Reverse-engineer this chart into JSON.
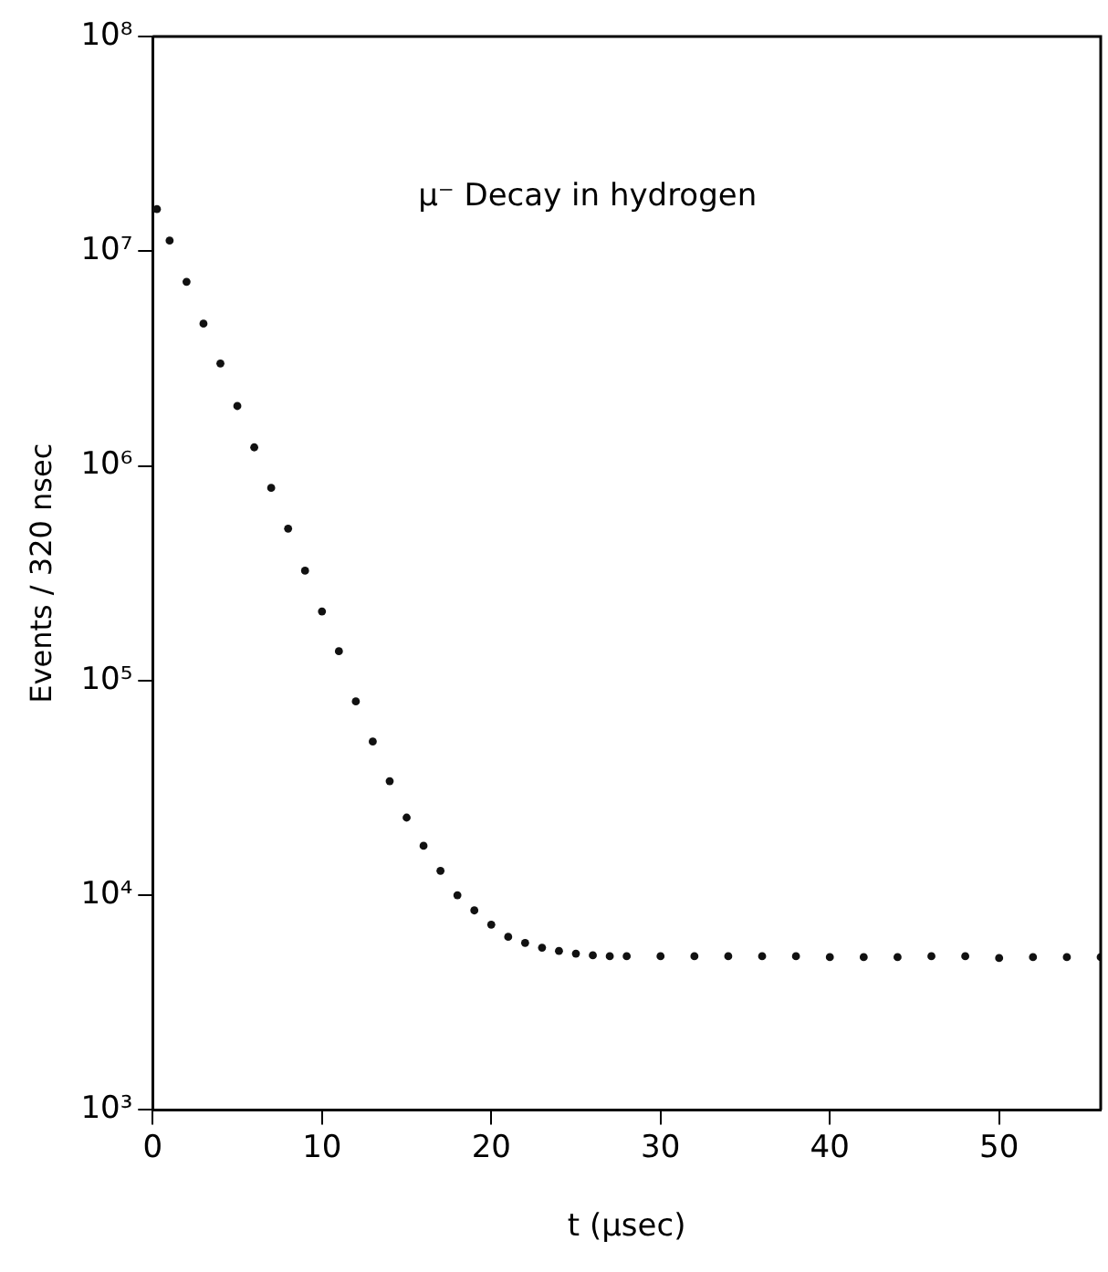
{
  "chart_data": {
    "type": "scatter",
    "xlabel": "t (μsec)",
    "ylabel": "Events / 320 nsec",
    "annotations": [
      "μ⁻ Decay in hydrogen"
    ],
    "x": [
      0.25,
      1,
      2,
      3,
      4,
      5,
      6,
      7,
      8,
      9,
      10,
      11,
      12,
      13,
      14,
      15,
      16,
      17,
      18,
      19,
      20,
      21,
      22,
      23,
      24,
      25,
      26,
      27,
      28,
      30,
      32,
      34,
      36,
      38,
      40,
      42,
      44,
      46,
      48,
      50,
      52,
      54,
      56
    ],
    "series": [
      {
        "color": "#111111",
        "values": [
          15700000,
          11200000,
          7200000,
          4600000,
          3000000,
          1900000,
          1220000,
          790000,
          510000,
          325000,
          210000,
          137000,
          80000,
          52000,
          34000,
          23000,
          17000,
          13000,
          10000,
          8500,
          7300,
          6400,
          6000,
          5700,
          5500,
          5350,
          5250,
          5200,
          5200,
          5200,
          5200,
          5200,
          5200,
          5200,
          5150,
          5150,
          5150,
          5200,
          5200,
          5100,
          5150,
          5150,
          5150
        ]
      }
    ],
    "xlim": [
      0,
      56
    ],
    "xticks": [
      0,
      10,
      20,
      30,
      40,
      50
    ],
    "ylim": [
      1000,
      100000000
    ],
    "log": true,
    "yticks": [
      {
        "value": 1000,
        "label": "10³"
      },
      {
        "value": 10000,
        "label": "10⁴"
      },
      {
        "value": 100000,
        "label": "10⁵"
      },
      {
        "value": 1000000,
        "label": "10⁶"
      },
      {
        "value": 10000000,
        "label": "10⁷"
      },
      {
        "value": 100000000,
        "label": "10⁸"
      }
    ],
    "grid": false,
    "legend": false,
    "marker": "circle"
  }
}
